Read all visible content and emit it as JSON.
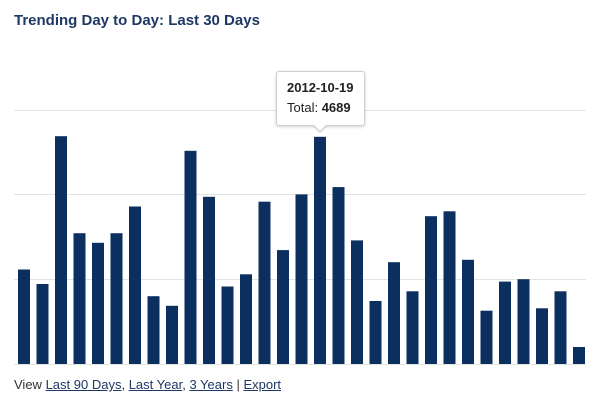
{
  "chart_title": "Trending Day to Day: Last 30 Days",
  "colors": {
    "bar": "#0b2f5e",
    "grid": "#e3e3e3",
    "title": "#1f3864",
    "link": "#1f3864"
  },
  "tooltip": {
    "date": "2012-10-19",
    "total_label": "Total:",
    "total_value": "4689",
    "bar_index": 16
  },
  "footer": {
    "view_label": "View",
    "links": [
      {
        "label": "Last 90 Days"
      },
      {
        "label": "Last Year"
      },
      {
        "label": "3 Years"
      },
      {
        "label": "Export"
      }
    ],
    "separator_comma": ",",
    "separator_pipe": "|"
  },
  "chart_data": {
    "type": "bar",
    "title": "Trending Day to Day: Last 30 Days",
    "xlabel": "",
    "ylabel": "",
    "ylim": [
      0,
      6500
    ],
    "grid": true,
    "gridlines": [
      0,
      1750,
      3500,
      5250
    ],
    "values": [
      1950,
      1650,
      4700,
      2700,
      2500,
      2700,
      3250,
      1400,
      1200,
      4400,
      3450,
      1600,
      1850,
      3350,
      2350,
      3500,
      4689,
      3650,
      2550,
      1300,
      2100,
      1500,
      3050,
      3150,
      2150,
      1100,
      1700,
      1750,
      1150,
      1500,
      350
    ]
  }
}
